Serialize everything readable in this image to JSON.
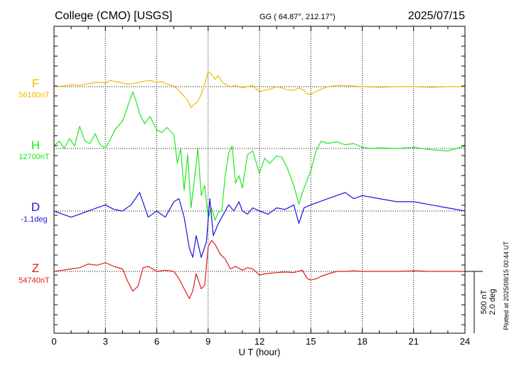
{
  "header": {
    "station": "College (CMO)  [USGS]",
    "coords": "GG ( 64.87°, 212.17°)",
    "date": "2025/07/15"
  },
  "footer": {
    "plotted": "Plotted at 2025/08/15 00:44 UT",
    "scale_nt": "500 nT",
    "scale_deg": "2.0 deg"
  },
  "chart_data": {
    "type": "line",
    "xlabel": "U T (hour)",
    "xlim": [
      0,
      24
    ],
    "xticks": [
      "0",
      "3",
      "6",
      "9",
      "12",
      "15",
      "18",
      "21",
      "24"
    ],
    "scale": {
      "nt_per_bar": 500,
      "deg_per_bar": 2.0
    },
    "series": [
      {
        "name": "F",
        "baseline_label": "56180nT",
        "color": "#f5b800",
        "baseline": 56180,
        "unit": "nT",
        "x": [
          0,
          0.5,
          1,
          1.5,
          2,
          2.5,
          3,
          3.3,
          3.6,
          4,
          4.3,
          4.6,
          5,
          5.3,
          5.6,
          6,
          6.3,
          6.6,
          7,
          7.3,
          7.6,
          7.8,
          8,
          8.2,
          8.4,
          8.6,
          8.8,
          9,
          9.2,
          9.4,
          9.6,
          9.8,
          10,
          10.3,
          10.6,
          11,
          11.3,
          11.6,
          12,
          12.3,
          12.6,
          13,
          13.3,
          13.6,
          14,
          14.3,
          14.6,
          14.8,
          15,
          15.3,
          15.6,
          16,
          16.5,
          17,
          17.5,
          18,
          19,
          20,
          21,
          22,
          23,
          24
        ],
        "values": [
          0,
          5,
          15,
          10,
          25,
          35,
          30,
          50,
          40,
          30,
          20,
          25,
          35,
          45,
          50,
          35,
          40,
          20,
          5,
          -30,
          -80,
          -110,
          -170,
          -140,
          -120,
          -60,
          20,
          120,
          100,
          60,
          90,
          40,
          20,
          0,
          10,
          -10,
          0,
          10,
          -40,
          -30,
          -20,
          0,
          -10,
          -25,
          -30,
          -10,
          -30,
          -60,
          -60,
          -40,
          -20,
          0,
          10,
          10,
          5,
          0,
          -5,
          0,
          0,
          -5,
          0,
          0
        ]
      },
      {
        "name": "H",
        "baseline_label": "12700nT",
        "color": "#22e622",
        "baseline": 12700,
        "unit": "nT",
        "x": [
          0,
          0.3,
          0.6,
          0.9,
          1.2,
          1.5,
          1.8,
          2.1,
          2.4,
          2.7,
          3,
          3.3,
          3.6,
          4,
          4.2,
          4.4,
          4.6,
          4.8,
          5,
          5.3,
          5.6,
          6,
          6.3,
          6.6,
          7,
          7.2,
          7.4,
          7.6,
          7.8,
          8,
          8.2,
          8.4,
          8.6,
          8.8,
          9,
          9.2,
          9.4,
          9.6,
          9.8,
          10,
          10.2,
          10.4,
          10.6,
          10.8,
          11,
          11.3,
          11.6,
          12,
          12.3,
          12.6,
          13,
          13.3,
          13.6,
          14,
          14.3,
          14.5,
          14.8,
          15,
          15.3,
          15.6,
          16,
          16.5,
          17,
          17.5,
          18,
          18.5,
          19,
          20,
          21,
          22,
          23,
          24
        ],
        "values": [
          20,
          60,
          0,
          80,
          20,
          180,
          60,
          40,
          120,
          30,
          0,
          80,
          160,
          220,
          300,
          380,
          460,
          380,
          280,
          200,
          260,
          150,
          130,
          170,
          110,
          -120,
          0,
          -340,
          -50,
          -480,
          -250,
          0,
          -380,
          -300,
          -560,
          -480,
          -580,
          -520,
          -500,
          -220,
          -40,
          20,
          -280,
          -220,
          -320,
          -50,
          -20,
          -200,
          -80,
          -120,
          -60,
          -70,
          -150,
          -300,
          -450,
          -360,
          -250,
          -180,
          -20,
          60,
          40,
          55,
          30,
          40,
          10,
          0,
          5,
          0,
          10,
          -10,
          -20,
          20
        ]
      },
      {
        "name": "D",
        "baseline_label": "-1.1deg",
        "color": "#1515e0",
        "baseline": -1.1,
        "unit": "deg",
        "x": [
          0,
          0.5,
          1,
          1.5,
          2,
          2.5,
          3,
          3.5,
          4,
          4.5,
          5,
          5.5,
          6,
          6.5,
          7,
          7.3,
          7.6,
          7.9,
          8.1,
          8.3,
          8.6,
          8.9,
          9.1,
          9.3,
          9.6,
          9.9,
          10.2,
          10.5,
          10.8,
          11,
          11.3,
          11.6,
          12,
          12.5,
          13,
          13.5,
          14,
          14.3,
          14.6,
          15,
          15.5,
          16,
          16.5,
          17,
          17.5,
          18,
          19,
          20,
          21,
          22,
          23,
          24
        ],
        "values": [
          0,
          -10,
          -20,
          -10,
          0,
          10,
          20,
          5,
          0,
          20,
          60,
          -20,
          0,
          -20,
          30,
          40,
          -20,
          -120,
          -150,
          -80,
          -150,
          -100,
          40,
          -80,
          -40,
          -10,
          20,
          0,
          30,
          0,
          -10,
          10,
          0,
          -10,
          10,
          5,
          20,
          -40,
          10,
          20,
          30,
          40,
          50,
          60,
          40,
          50,
          40,
          30,
          30,
          20,
          10,
          0
        ]
      },
      {
        "name": "Z",
        "baseline_label": "54740nT",
        "color": "#e61a1a",
        "baseline": 54740,
        "unit": "nT",
        "x": [
          0,
          0.5,
          1,
          1.5,
          2,
          2.5,
          3,
          3.5,
          4,
          4.3,
          4.6,
          4.9,
          5.2,
          5.5,
          6,
          6.5,
          7,
          7.3,
          7.6,
          7.9,
          8.1,
          8.3,
          8.6,
          8.8,
          9,
          9.2,
          9.4,
          9.7,
          10,
          10.3,
          10.6,
          11,
          11.3,
          11.6,
          12,
          12.3,
          12.6,
          13,
          13.5,
          14,
          14.5,
          14.8,
          15,
          15.3,
          15.6,
          16,
          16.5,
          17,
          17.5,
          18,
          19,
          20,
          21,
          22,
          23,
          24
        ],
        "values": [
          0,
          10,
          20,
          30,
          60,
          50,
          70,
          40,
          20,
          -80,
          -160,
          -120,
          30,
          40,
          0,
          10,
          0,
          -60,
          -140,
          -220,
          -160,
          -20,
          -140,
          -110,
          200,
          250,
          220,
          140,
          100,
          20,
          40,
          10,
          30,
          20,
          -30,
          -20,
          -15,
          -10,
          -5,
          -10,
          10,
          -60,
          -70,
          -60,
          -40,
          -20,
          0,
          0,
          5,
          0,
          0,
          0,
          5,
          0,
          0,
          0
        ]
      }
    ]
  }
}
